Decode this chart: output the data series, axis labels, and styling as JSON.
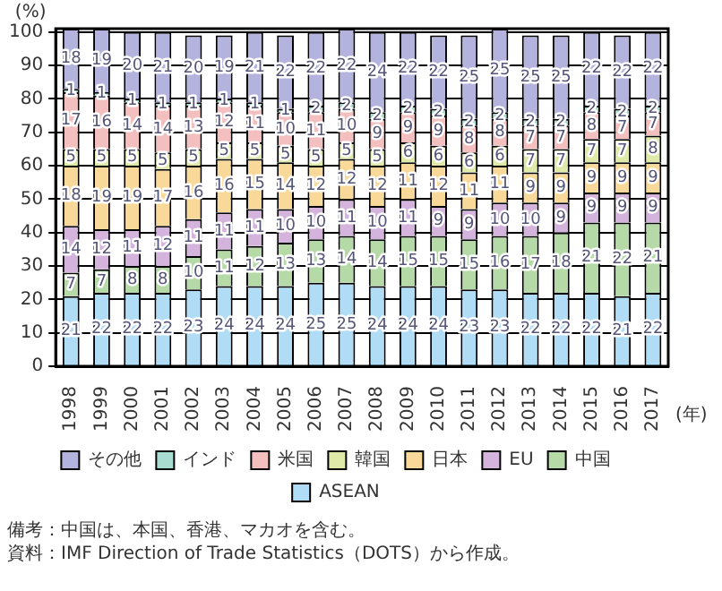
{
  "chart_data": {
    "type": "bar",
    "stacked": true,
    "ylabel": "(%)",
    "xlabel": "(年)",
    "categories": [
      "1998",
      "1999",
      "2000",
      "2001",
      "2002",
      "2003",
      "2004",
      "2005",
      "2006",
      "2007",
      "2008",
      "2009",
      "2010",
      "2011",
      "2012",
      "2013",
      "2014",
      "2015",
      "2016",
      "2017"
    ],
    "series": [
      {
        "name": "ASEAN",
        "color": "#b0dcf5",
        "values": [
          21,
          22,
          22,
          22,
          23,
          24,
          24,
          24,
          25,
          25,
          24,
          24,
          24,
          23,
          23,
          22,
          22,
          22,
          21,
          22
        ]
      },
      {
        "name": "中国",
        "color": "#b5d9a7",
        "values": [
          7,
          7,
          8,
          8,
          10,
          11,
          12,
          13,
          13,
          14,
          14,
          15,
          15,
          15,
          16,
          17,
          18,
          21,
          22,
          21
        ]
      },
      {
        "name": "EU",
        "color": "#d4b4dc",
        "values": [
          14,
          12,
          11,
          12,
          11,
          11,
          11,
          10,
          10,
          11,
          10,
          11,
          9,
          9,
          10,
          10,
          9,
          9,
          9,
          9
        ]
      },
      {
        "name": "日本",
        "color": "#f9d99a",
        "values": [
          18,
          19,
          19,
          17,
          16,
          16,
          15,
          14,
          12,
          12,
          12,
          11,
          12,
          11,
          11,
          9,
          9,
          9,
          9,
          9
        ]
      },
      {
        "name": "韓国",
        "color": "#e0eaa8",
        "values": [
          5,
          5,
          5,
          5,
          5,
          5,
          5,
          5,
          5,
          5,
          5,
          6,
          6,
          6,
          6,
          7,
          7,
          7,
          7,
          8
        ]
      },
      {
        "name": "米国",
        "color": "#f3bfbf",
        "values": [
          17,
          16,
          14,
          14,
          13,
          12,
          11,
          10,
          11,
          10,
          9,
          9,
          9,
          8,
          8,
          7,
          7,
          8,
          7,
          7
        ]
      },
      {
        "name": "インド",
        "color": "#a8dcd0",
        "values": [
          1,
          1,
          1,
          1,
          1,
          1,
          1,
          1,
          2,
          2,
          2,
          2,
          2,
          2,
          2,
          2,
          2,
          2,
          2,
          2
        ]
      },
      {
        "name": "その他",
        "color": "#b3b3dd",
        "values": [
          18,
          19,
          20,
          21,
          20,
          19,
          21,
          22,
          22,
          22,
          24,
          22,
          22,
          25,
          25,
          25,
          25,
          22,
          22,
          22
        ]
      }
    ],
    "ylim": [
      0,
      101
    ],
    "yticks": [
      0,
      10,
      20,
      30,
      40,
      50,
      60,
      70,
      80,
      90,
      100
    ],
    "grid": "y",
    "legend": "bottom",
    "data_labels": true,
    "annotations": [
      "備考：中国は、本国、香港、マカオを含む。",
      "資料：IMF Direction of Trade Statistics（DOTS）から作成。"
    ]
  }
}
